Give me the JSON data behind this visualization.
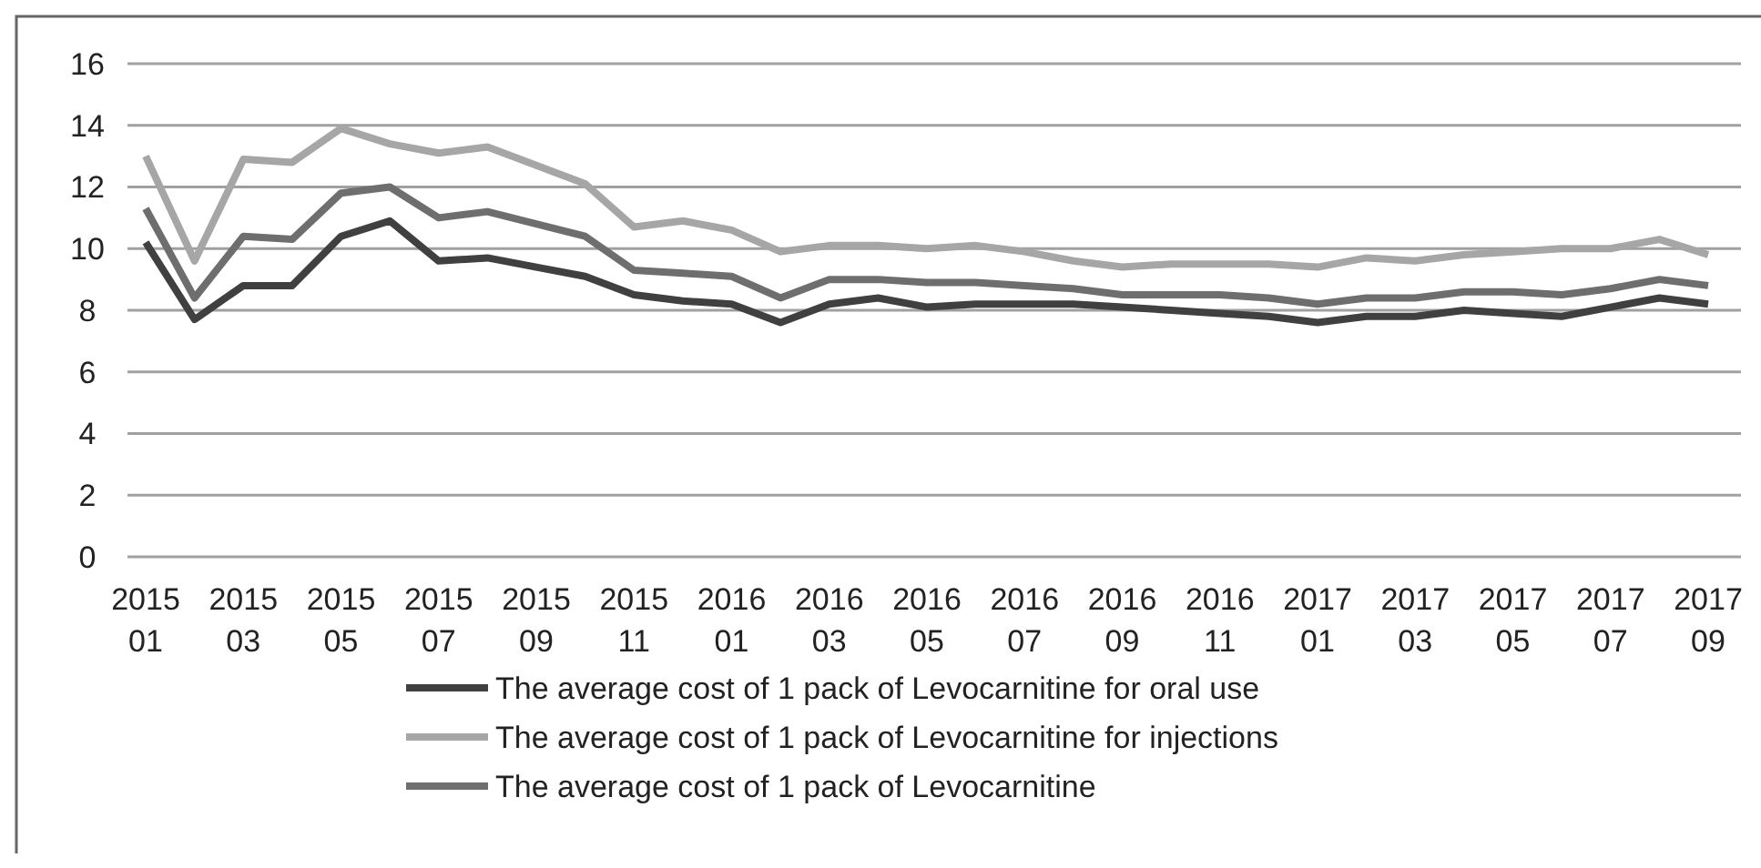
{
  "chart_data": {
    "type": "line",
    "categories": [
      "2015\n01",
      null,
      "2015\n03",
      null,
      "2015\n05",
      null,
      "2015\n07",
      null,
      "2015\n09",
      null,
      "2015\n11",
      null,
      "2016\n01",
      null,
      "2016\n03",
      null,
      "2016\n05",
      null,
      "2016\n07",
      null,
      "2016\n09",
      null,
      "2016\n11",
      null,
      "2017\n01",
      null,
      "2017\n03",
      null,
      "2017\n05",
      null,
      "2017\n07",
      null,
      "2017\n09"
    ],
    "series": [
      {
        "name": "The average cost of 1 pack of Levocarnitine for oral use",
        "color": "#404040",
        "values": [
          10.2,
          7.7,
          8.8,
          8.8,
          10.4,
          10.9,
          9.6,
          9.7,
          9.4,
          9.1,
          8.5,
          8.3,
          8.2,
          7.6,
          8.2,
          8.4,
          8.1,
          8.2,
          8.2,
          8.2,
          8.1,
          8.0,
          7.9,
          7.8,
          7.6,
          7.8,
          7.8,
          8.0,
          7.9,
          7.8,
          8.1,
          8.4,
          8.2
        ]
      },
      {
        "name": "The average cost of 1 pack of Levocarnitine for injections",
        "color": "#a6a6a6",
        "values": [
          13.0,
          9.6,
          12.9,
          12.8,
          13.9,
          13.4,
          13.1,
          13.3,
          12.7,
          12.1,
          10.7,
          10.9,
          10.6,
          9.9,
          10.1,
          10.1,
          10.0,
          10.1,
          9.9,
          9.6,
          9.4,
          9.5,
          9.5,
          9.5,
          9.4,
          9.7,
          9.6,
          9.8,
          9.9,
          10.0,
          10.0,
          10.3,
          9.8
        ]
      },
      {
        "name": "The average cost of 1 pack of Levocarnitine",
        "color": "#6e6e6e",
        "values": [
          11.3,
          8.4,
          10.4,
          10.3,
          11.8,
          12.0,
          11.0,
          11.2,
          10.8,
          10.4,
          9.3,
          9.2,
          9.1,
          8.4,
          9.0,
          9.0,
          8.9,
          8.9,
          8.8,
          8.7,
          8.5,
          8.5,
          8.5,
          8.4,
          8.2,
          8.4,
          8.4,
          8.6,
          8.6,
          8.5,
          8.7,
          9.0,
          8.8
        ]
      }
    ],
    "ylim": [
      0,
      16
    ],
    "yticks": [
      0,
      2,
      4,
      6,
      8,
      10,
      12,
      14,
      16
    ],
    "grid": "y",
    "legend": "bottom",
    "marker": "none",
    "line_style": "solid"
  }
}
